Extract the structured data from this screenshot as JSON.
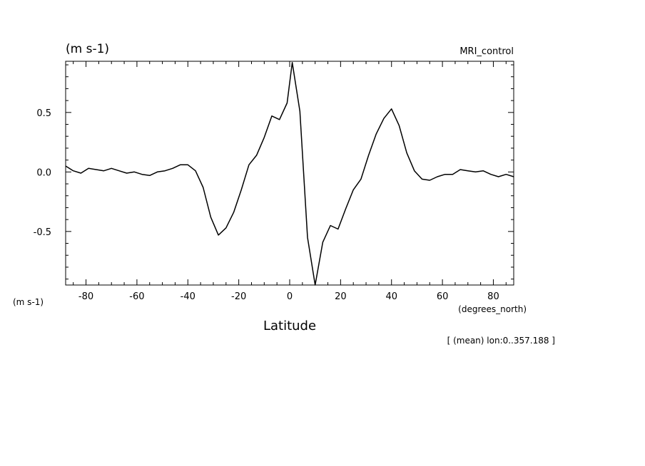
{
  "chart_data": {
    "type": "line",
    "title": "",
    "dataset_label": "MRI_control",
    "y_unit_top": "(m s-1)",
    "y_unit_left": "(m s-1)",
    "xlabel": "Latitude",
    "x_unit": "(degrees_north)",
    "note": "[ (mean) lon:0..357.188 ]",
    "xlim": [
      -88,
      88
    ],
    "ylim": [
      -0.95,
      0.93
    ],
    "x_ticks": [
      -80,
      -60,
      -40,
      -20,
      0,
      20,
      40,
      60,
      80
    ],
    "x_tick_labels": [
      "-80",
      "-60",
      "-40",
      "-20",
      "0",
      "20",
      "40",
      "60",
      "80"
    ],
    "y_ticks": [
      -0.5,
      0.0,
      0.5
    ],
    "y_tick_labels": [
      "-0.5",
      "0.0",
      "0.5"
    ],
    "grid": false,
    "line_color": "#000000",
    "series": [
      {
        "x": [
          -88,
          -85,
          -82,
          -79,
          -76,
          -73,
          -70,
          -67,
          -64,
          -61,
          -58,
          -55,
          -52,
          -49,
          -46,
          -43,
          -40,
          -37,
          -34,
          -31,
          -28,
          -25,
          -22,
          -19,
          -16,
          -13,
          -10,
          -7,
          -4,
          -1,
          1,
          4,
          7,
          10,
          13,
          16,
          19,
          22,
          25,
          28,
          31,
          34,
          37,
          40,
          43,
          46,
          49,
          52,
          55,
          58,
          61,
          64,
          67,
          70,
          73,
          76,
          79,
          82,
          85,
          88
        ],
        "y": [
          0.05,
          0.01,
          -0.01,
          0.03,
          0.02,
          0.01,
          0.03,
          0.01,
          -0.01,
          0.0,
          -0.02,
          -0.03,
          0.0,
          0.01,
          0.03,
          0.06,
          0.06,
          0.01,
          -0.13,
          -0.38,
          -0.53,
          -0.47,
          -0.34,
          -0.15,
          0.06,
          0.14,
          0.29,
          0.47,
          0.44,
          0.58,
          0.92,
          0.51,
          -0.55,
          -0.95,
          -0.59,
          -0.45,
          -0.48,
          -0.31,
          -0.15,
          -0.06,
          0.14,
          0.32,
          0.45,
          0.53,
          0.39,
          0.16,
          0.01,
          -0.06,
          -0.07,
          -0.04,
          -0.02,
          -0.02,
          0.02,
          0.01,
          0.0,
          0.01,
          -0.02,
          -0.04,
          -0.02,
          -0.04
        ]
      }
    ]
  }
}
